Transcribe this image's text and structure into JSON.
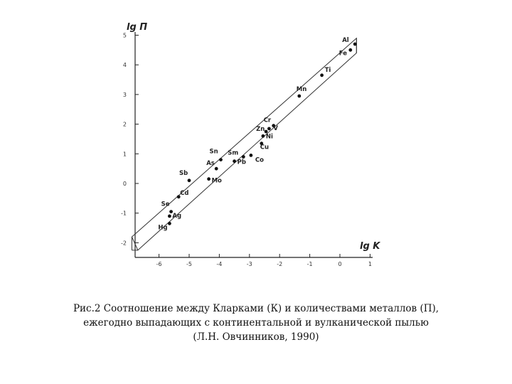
{
  "chart_data": {
    "type": "scatter",
    "title": "",
    "xlabel": "lg K",
    "ylabel": "lg П",
    "xlim": [
      -7,
      1.2
    ],
    "ylim": [
      -2.5,
      5.2
    ],
    "x_ticks": [
      "-6",
      "-5",
      "-4",
      "-3",
      "-2",
      "-1",
      "0",
      "1"
    ],
    "y_ticks": [
      "5",
      "4",
      "3",
      "2",
      "1",
      "0",
      "-1",
      "-2"
    ],
    "grid": false,
    "points": [
      {
        "label": "Al",
        "x": 0.5,
        "y": 4.7
      },
      {
        "label": "Fe",
        "x": 0.35,
        "y": 4.5
      },
      {
        "label": "Ti",
        "x": -0.6,
        "y": 3.65
      },
      {
        "label": "Mn",
        "x": -1.35,
        "y": 2.95
      },
      {
        "label": "Cr",
        "x": -2.2,
        "y": 1.95
      },
      {
        "label": "V",
        "x": -2.35,
        "y": 1.85
      },
      {
        "label": "Zn",
        "x": -2.45,
        "y": 1.75
      },
      {
        "label": "Ni",
        "x": -2.55,
        "y": 1.6
      },
      {
        "label": "Cu",
        "x": -2.6,
        "y": 1.35
      },
      {
        "label": "Co",
        "x": -2.95,
        "y": 0.95
      },
      {
        "label": "Sm",
        "x": -3.2,
        "y": 0.9
      },
      {
        "label": "Pb",
        "x": -3.5,
        "y": 0.75
      },
      {
        "label": "Sn",
        "x": -3.95,
        "y": 0.8
      },
      {
        "label": "As",
        "x": -4.1,
        "y": 0.5
      },
      {
        "label": "Mo",
        "x": -4.35,
        "y": 0.15
      },
      {
        "label": "Sb",
        "x": -5.0,
        "y": 0.1
      },
      {
        "label": "Cd",
        "x": -5.35,
        "y": -0.45
      },
      {
        "label": "Se",
        "x": -5.6,
        "y": -0.95
      },
      {
        "label": "Ag",
        "x": -5.65,
        "y": -1.1
      },
      {
        "label": "Hg",
        "x": -5.65,
        "y": -1.35
      }
    ]
  },
  "caption": {
    "line1": "Рис.2 Соотношение между Кларками (К) и количествами металлов (П),",
    "line2": "ежегодно выпадающих с континентальной и вулканической пылью",
    "line3": "(Л.Н. Овчинников, 1990)"
  }
}
